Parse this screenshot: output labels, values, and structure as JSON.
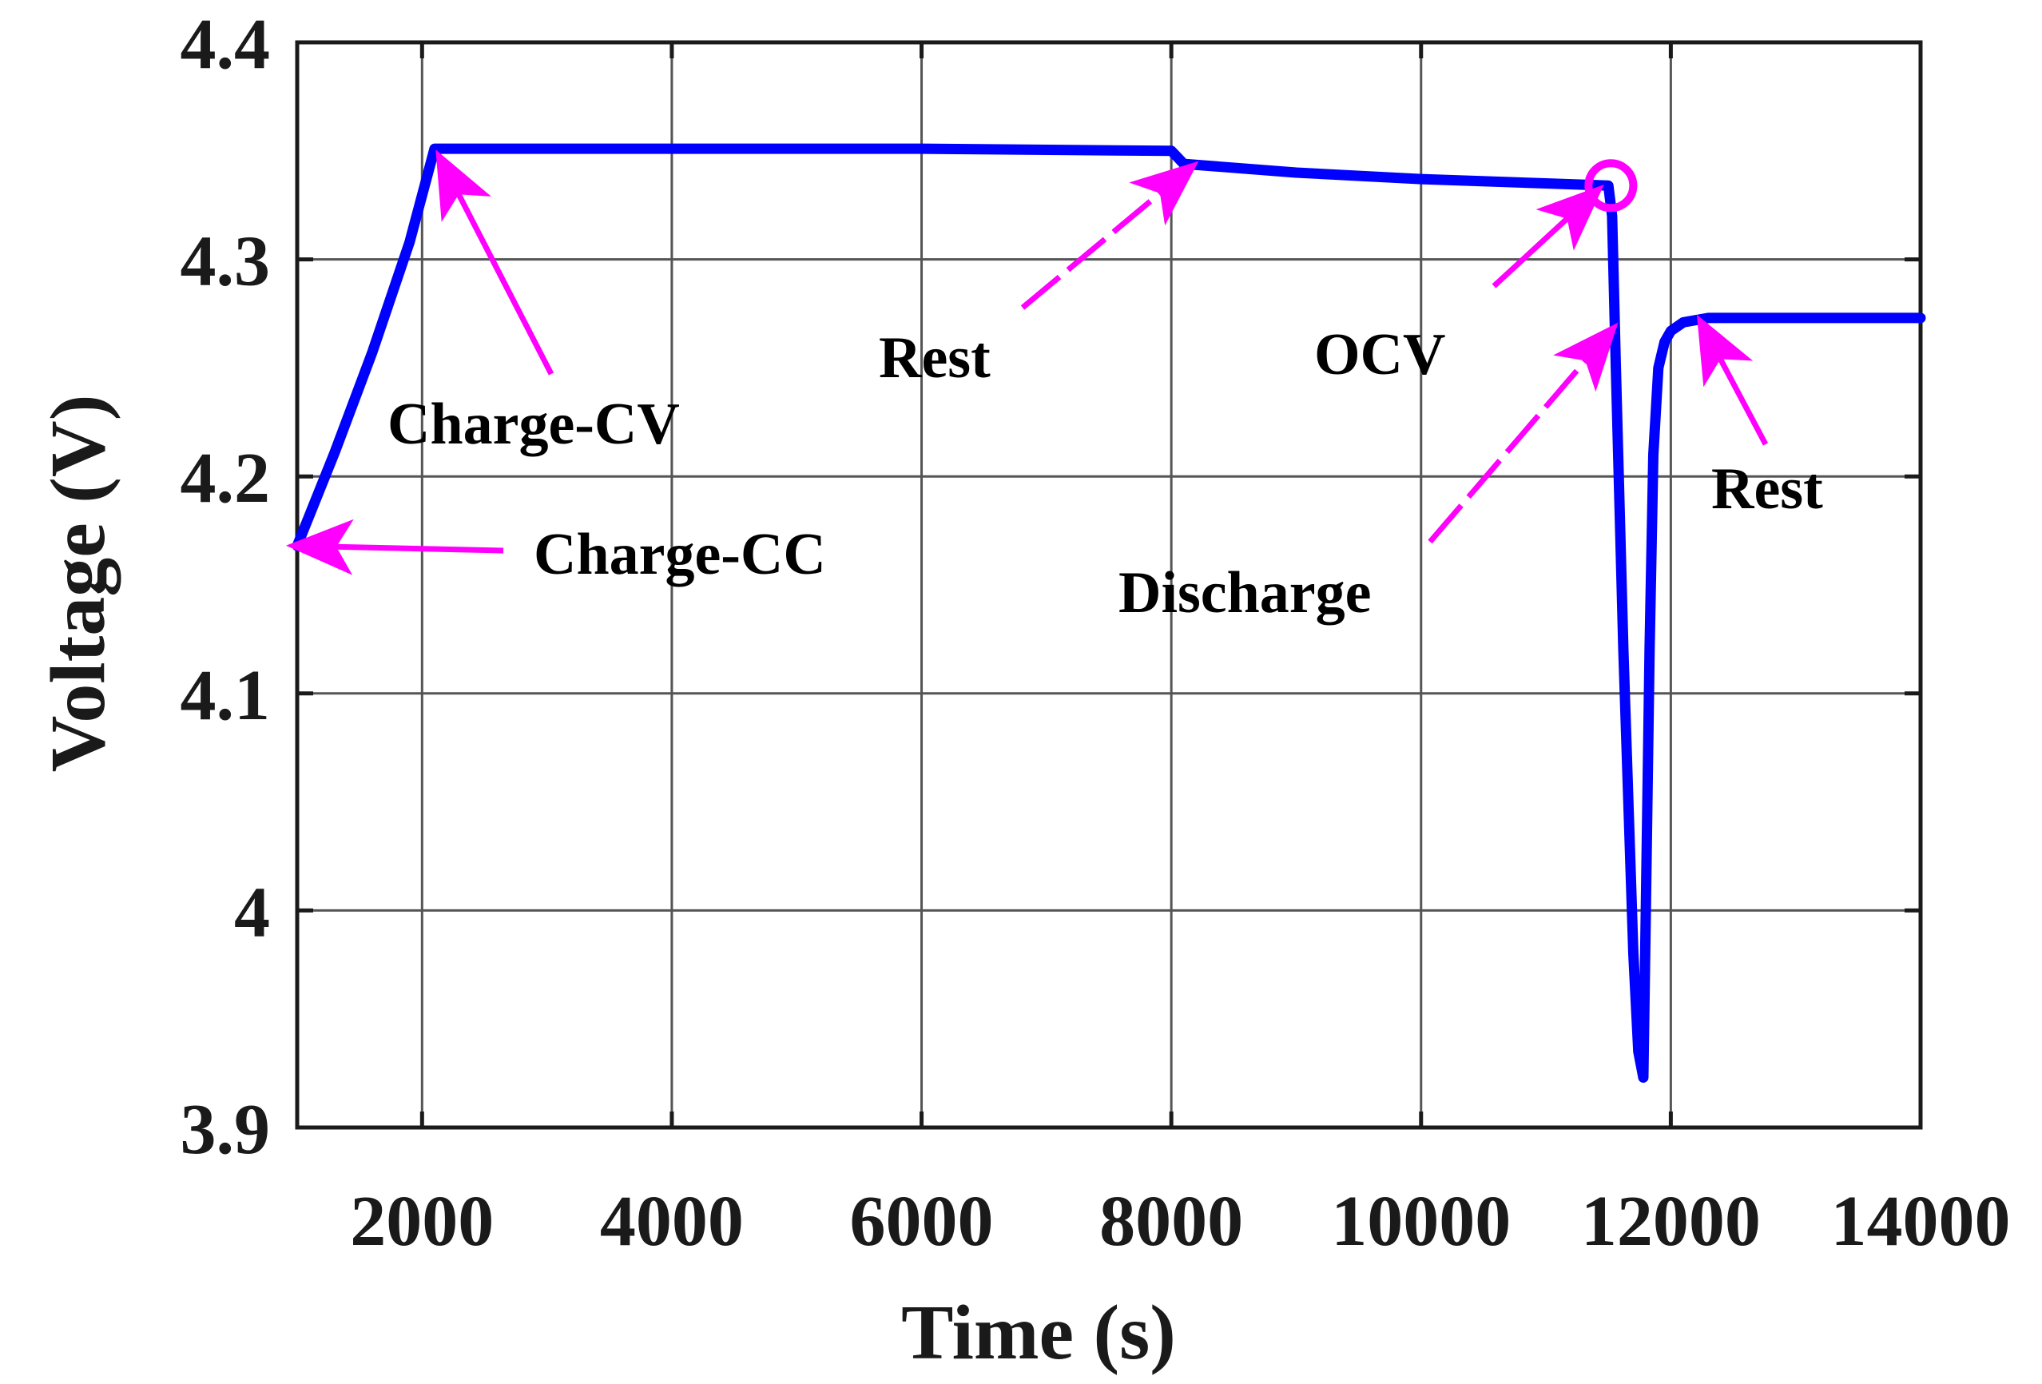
{
  "chart_data": {
    "type": "line",
    "title": "",
    "xlabel": "Time (s)",
    "ylabel": "Voltage (V)",
    "xlim": [
      1000,
      14000
    ],
    "ylim": [
      3.9,
      4.4
    ],
    "grid": true,
    "x_ticks": [
      2000,
      4000,
      6000,
      8000,
      10000,
      12000,
      14000
    ],
    "x_tick_labels": [
      "2000",
      "4000",
      "6000",
      "8000",
      "10000",
      "12000",
      "14000"
    ],
    "y_ticks": [
      3.9,
      4.0,
      4.1,
      4.2,
      4.3,
      4.4
    ],
    "y_tick_labels": [
      "3.9",
      "4",
      "4.1",
      "4.2",
      "4.3",
      "4.4"
    ],
    "series": [
      {
        "name": "Voltage",
        "color": "#0000ff",
        "x": [
          1000,
          1300,
          1600,
          1900,
          2100,
          4000,
          6000,
          8000,
          8100,
          9000,
          10000,
          11000,
          11500,
          11530,
          11560,
          11620,
          11700,
          11740,
          11780,
          11800,
          11830,
          11860,
          11900,
          11950,
          12000,
          12100,
          12200,
          12300,
          12500,
          13000,
          13500,
          14000
        ],
        "y": [
          4.168,
          4.211,
          4.257,
          4.308,
          4.351,
          4.351,
          4.351,
          4.35,
          4.344,
          4.34,
          4.337,
          4.335,
          4.334,
          4.32,
          4.25,
          4.12,
          3.98,
          3.935,
          3.923,
          4.0,
          4.12,
          4.21,
          4.25,
          4.262,
          4.267,
          4.271,
          4.272,
          4.273,
          4.273,
          4.273,
          4.273,
          4.273
        ]
      }
    ],
    "ocv_marker": {
      "x": 11520,
      "y": 4.334,
      "color": "#ff00ff"
    },
    "annotation_color": "#ff00ff",
    "annotations": [
      {
        "id": "charge-cc",
        "text": "Charge-CC",
        "point": [
          1000,
          4.168
        ]
      },
      {
        "id": "charge-cv",
        "text": "Charge-CV",
        "point": [
          2150,
          4.346
        ]
      },
      {
        "id": "rest-1",
        "text": "Rest",
        "point": [
          8150,
          4.342
        ]
      },
      {
        "id": "ocv",
        "text": "OCV",
        "point": [
          11400,
          4.331
        ]
      },
      {
        "id": "discharge",
        "text": "Discharge",
        "point": [
          11520,
          4.267
        ]
      },
      {
        "id": "rest-2",
        "text": "Rest",
        "point": [
          12250,
          4.27
        ]
      }
    ]
  }
}
